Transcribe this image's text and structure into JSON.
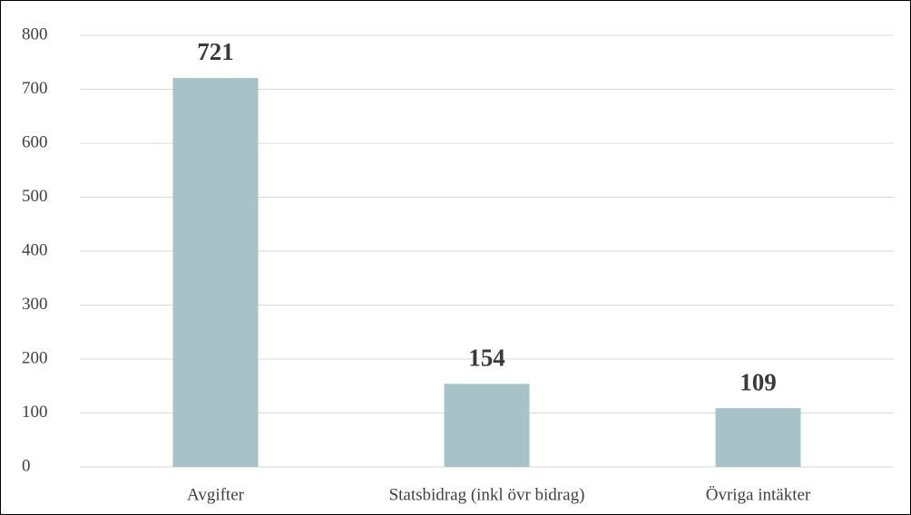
{
  "chart_data": {
    "type": "bar",
    "categories": [
      "Avgifter",
      "Statsbidrag (inkl övr bidrag)",
      "Övriga intäkter"
    ],
    "values": [
      721,
      154,
      109
    ],
    "color": "#a8c3c7",
    "ylim": [
      0,
      800
    ],
    "yticks": [
      0,
      100,
      200,
      300,
      400,
      500,
      600,
      700,
      800
    ],
    "grid": true
  }
}
